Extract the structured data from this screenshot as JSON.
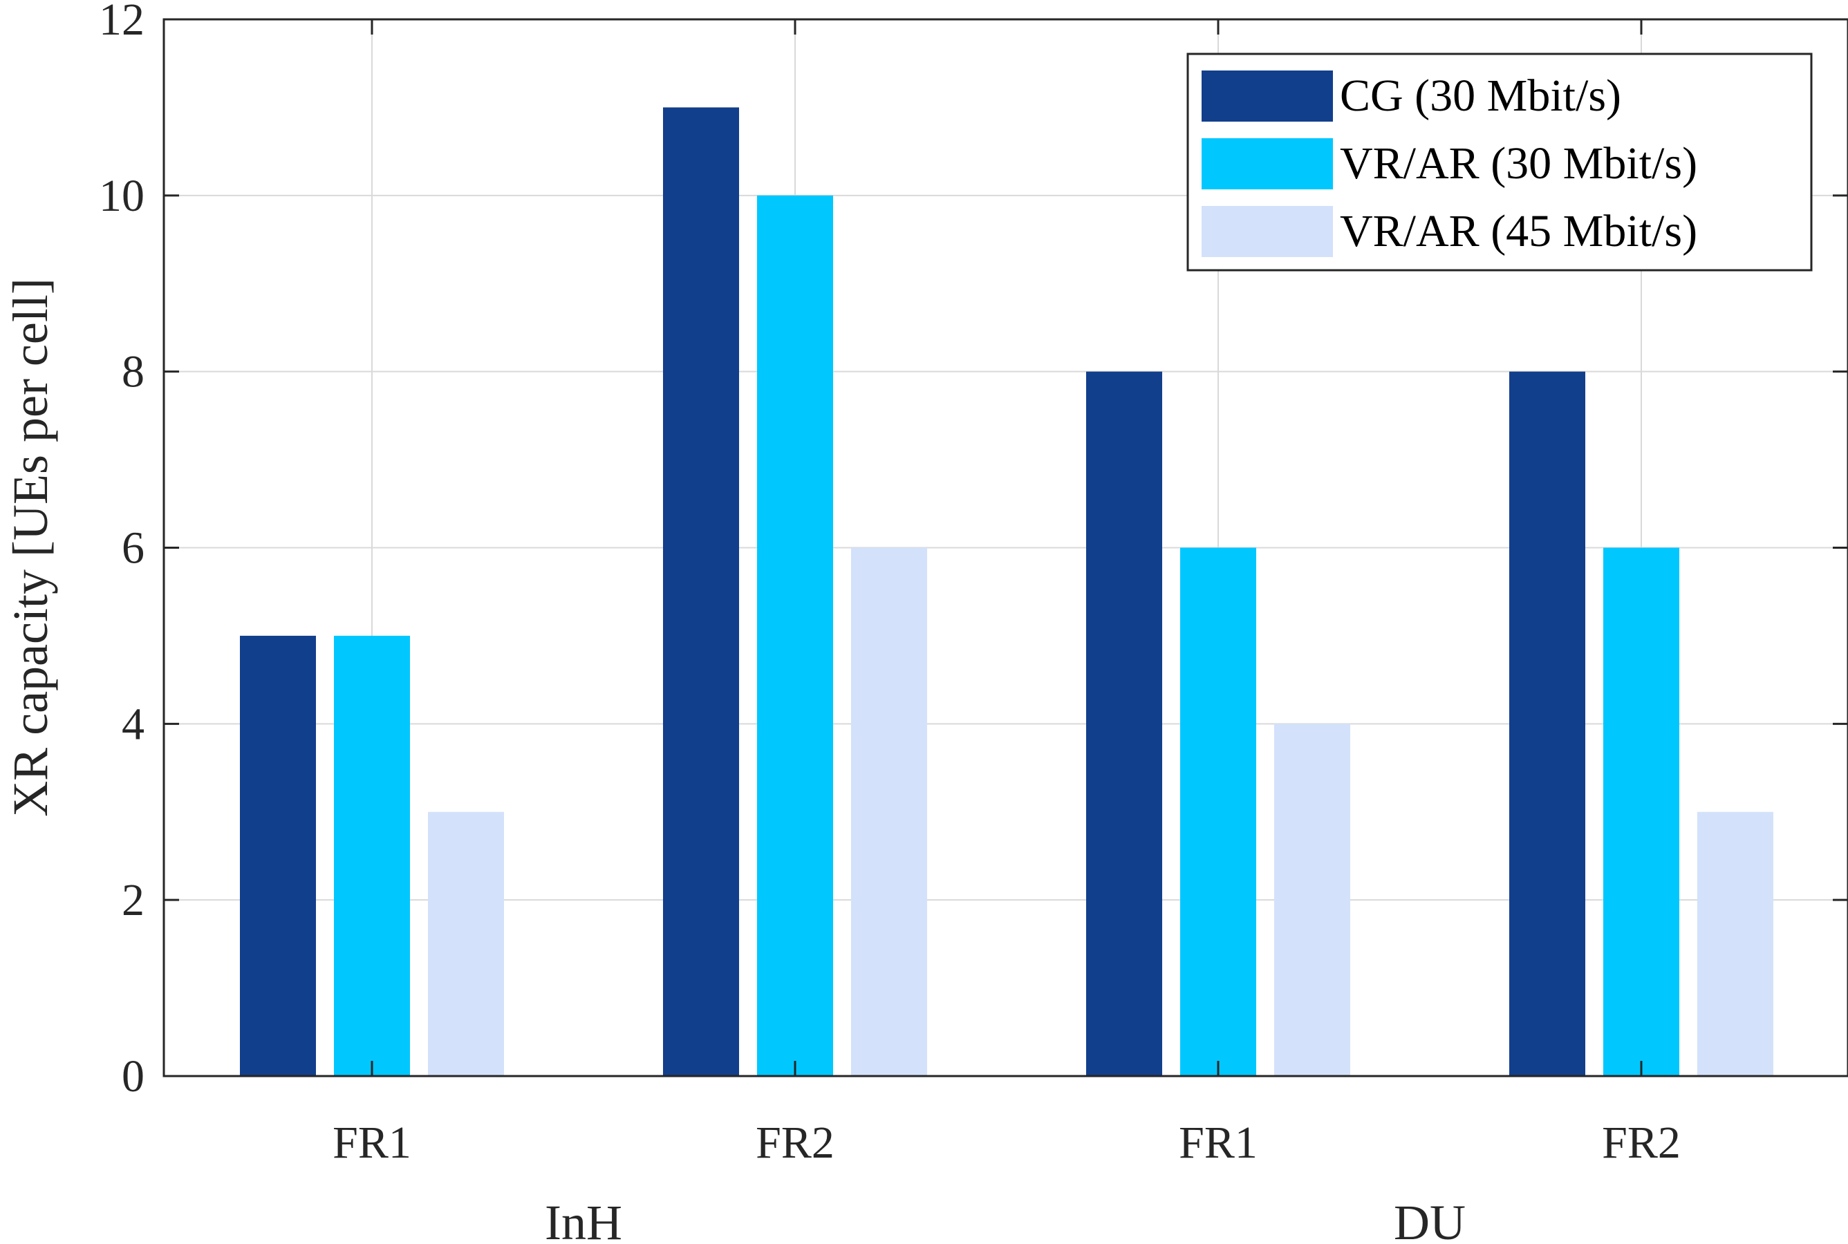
{
  "chart_data": {
    "type": "bar",
    "categories": [
      "FR1",
      "FR2",
      "FR1",
      "FR2"
    ],
    "groups": [
      {
        "label": "InH",
        "span": [
          0,
          1
        ]
      },
      {
        "label": "DU",
        "span": [
          2,
          3
        ]
      }
    ],
    "series": [
      {
        "name": "CG (30 Mbit/s)",
        "values": [
          5,
          11,
          8,
          8
        ],
        "color": "#123f8c"
      },
      {
        "name": "VR/AR (30 Mbit/s)",
        "values": [
          5,
          10,
          6,
          6
        ],
        "color": "#00c8ff"
      },
      {
        "name": "VR/AR (45 Mbit/s)",
        "values": [
          3,
          6,
          4,
          3
        ],
        "color": "#d3e1fb"
      }
    ],
    "ylabel": "XR capacity [UEs per cell]",
    "xlabel": "",
    "title": "",
    "ylim": [
      0,
      12
    ],
    "yticks": [
      0,
      2,
      4,
      6,
      8,
      10,
      12
    ],
    "grid": true,
    "legend": "top-right"
  }
}
